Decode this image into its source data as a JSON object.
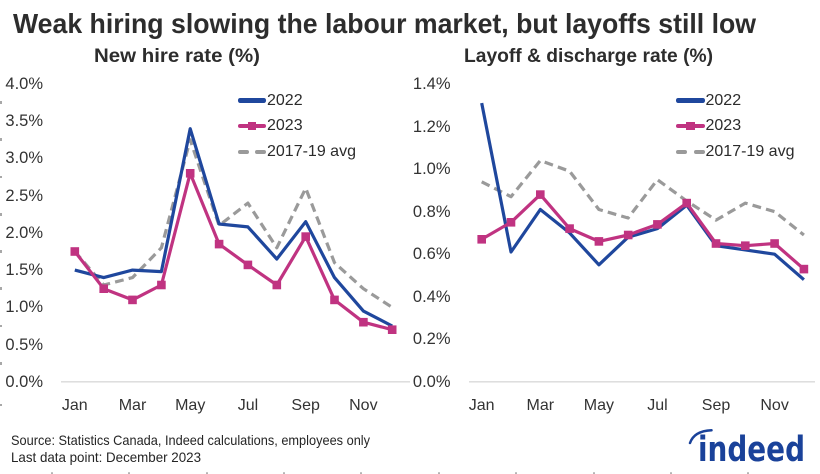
{
  "header": {
    "title": "Weak hiring slowing the labour market, but layoffs still low"
  },
  "colors": {
    "series_2022": "#1f479d",
    "series_2023": "#c03381",
    "series_avg": "#9a9a9a",
    "axis_line": "#d9d9d9",
    "title_text": "#2d2d2d",
    "tick_text": "#333333",
    "logo_blue": "#1a429a"
  },
  "chart_data": [
    {
      "type": "line",
      "title": "New hire rate (%)",
      "xlabel": "",
      "ylabel": "",
      "categories": [
        "Jan",
        "Feb",
        "Mar",
        "Apr",
        "May",
        "Jun",
        "Jul",
        "Aug",
        "Sep",
        "Oct",
        "Nov",
        "Dec"
      ],
      "x_tick_labels": [
        "Jan",
        "Mar",
        "May",
        "Jul",
        "Sep",
        "Nov"
      ],
      "ylim": [
        0.0,
        4.0
      ],
      "y_ticks": [
        4.0,
        3.5,
        3.0,
        2.5,
        2.0,
        1.5,
        1.0,
        0.5,
        0.0
      ],
      "y_tick_labels": [
        "4.0%",
        "3.5%",
        "3.0%",
        "2.5%",
        "2.0%",
        "1.5%",
        "1.0%",
        "0.5%",
        "0.0%"
      ],
      "grid": false,
      "legend_position": "upper-right-inside",
      "series": [
        {
          "name": "2022",
          "style": "solid",
          "marker": "none",
          "values": [
            1.5,
            1.4,
            1.5,
            1.48,
            3.4,
            2.12,
            2.08,
            1.65,
            2.15,
            1.4,
            0.95,
            0.75
          ]
        },
        {
          "name": "2023",
          "style": "solid",
          "marker": "square",
          "values": [
            1.75,
            1.25,
            1.1,
            1.3,
            2.8,
            1.85,
            1.57,
            1.3,
            1.95,
            1.1,
            0.8,
            0.7
          ]
        },
        {
          "name": "2017-19 avg",
          "style": "dashed",
          "marker": "none",
          "values": [
            1.75,
            1.3,
            1.4,
            1.8,
            3.25,
            2.1,
            2.4,
            1.8,
            2.6,
            1.6,
            1.25,
            1.0
          ]
        }
      ]
    },
    {
      "type": "line",
      "title": "Layoff & discharge rate (%)",
      "xlabel": "",
      "ylabel": "",
      "categories": [
        "Jan",
        "Feb",
        "Mar",
        "Apr",
        "May",
        "Jun",
        "Jul",
        "Aug",
        "Sep",
        "Oct",
        "Nov",
        "Dec"
      ],
      "x_tick_labels": [
        "Jan",
        "Mar",
        "May",
        "Jul",
        "Sep",
        "Nov"
      ],
      "ylim": [
        0.0,
        1.4
      ],
      "y_ticks": [
        1.4,
        1.2,
        1.0,
        0.8,
        0.6,
        0.4,
        0.2,
        0.0
      ],
      "y_tick_labels": [
        "1.4%",
        "1.2%",
        "1.0%",
        "0.8%",
        "0.6%",
        "0.4%",
        "0.2%",
        "0.0%"
      ],
      "grid": false,
      "legend_position": "upper-right-inside",
      "series": [
        {
          "name": "2022",
          "style": "solid",
          "marker": "none",
          "values": [
            1.31,
            0.61,
            0.81,
            0.7,
            0.55,
            0.68,
            0.72,
            0.83,
            0.64,
            0.62,
            0.6,
            0.48
          ]
        },
        {
          "name": "2023",
          "style": "solid",
          "marker": "square",
          "values": [
            0.67,
            0.75,
            0.88,
            0.72,
            0.66,
            0.69,
            0.74,
            0.84,
            0.65,
            0.64,
            0.65,
            0.53
          ]
        },
        {
          "name": "2017-19 avg",
          "style": "dashed",
          "marker": "none",
          "values": [
            0.94,
            0.87,
            1.04,
            0.99,
            0.81,
            0.77,
            0.95,
            0.85,
            0.76,
            0.84,
            0.8,
            0.69
          ]
        }
      ]
    }
  ],
  "footer": {
    "source_line": "Source: Statistics Canada, Indeed calculations, employees only",
    "last_data_line": "Last data point: December 2023"
  },
  "logo": {
    "text": "indeed"
  }
}
